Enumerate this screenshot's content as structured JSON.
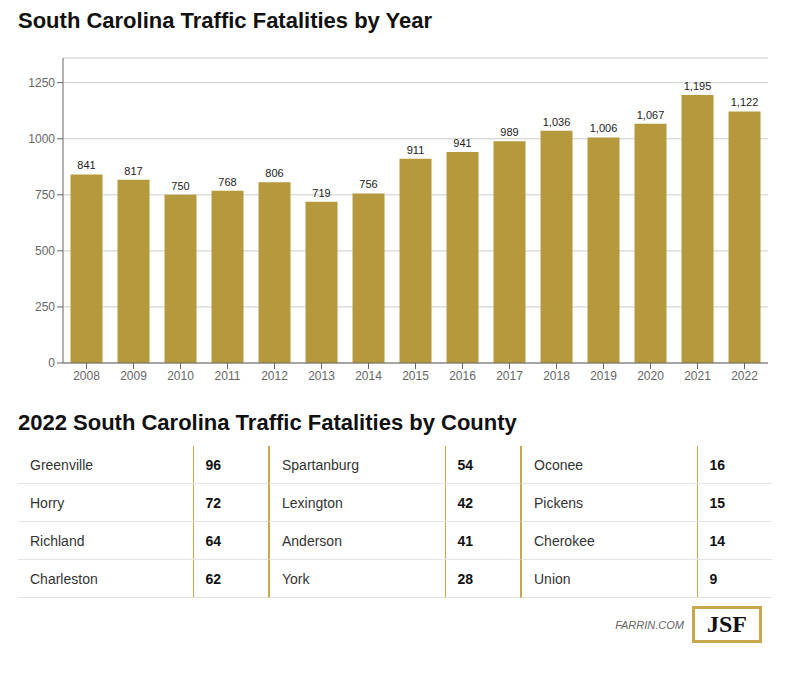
{
  "chart_data": [
    {
      "type": "bar",
      "title": "South Carolina Traffic Fatalities by Year",
      "categories": [
        "2008",
        "2009",
        "2010",
        "2011",
        "2012",
        "2013",
        "2014",
        "2015",
        "2016",
        "2017",
        "2018",
        "2019",
        "2020",
        "2021",
        "2022"
      ],
      "values": [
        841,
        817,
        750,
        768,
        806,
        719,
        756,
        911,
        941,
        989,
        1036,
        1006,
        1067,
        1195,
        1122
      ],
      "value_labels": [
        "841",
        "817",
        "750",
        "768",
        "806",
        "719",
        "756",
        "911",
        "941",
        "989",
        "1,036",
        "1,006",
        "1,067",
        "1,195",
        "1,122"
      ],
      "data_labels": true,
      "color": "#B5993C",
      "ylim": [
        0,
        1360
      ],
      "yticks": [
        0,
        250,
        500,
        750,
        1000,
        1250
      ],
      "grid": true
    },
    {
      "type": "table",
      "title": "2022 South Carolina Traffic Fatalities by County",
      "rows": [
        [
          "Greenville",
          96,
          "Spartanburg",
          54,
          "Oconee",
          16
        ],
        [
          "Horry",
          72,
          "Lexington",
          42,
          "Pickens",
          15
        ],
        [
          "Richland",
          64,
          "Anderson",
          41,
          "Cherokee",
          14
        ],
        [
          "Charleston",
          62,
          "York",
          28,
          "Union",
          9
        ]
      ],
      "color": "#C9A84C",
      "annotations": [
        "FARRIN.COM",
        "JSF"
      ]
    }
  ]
}
